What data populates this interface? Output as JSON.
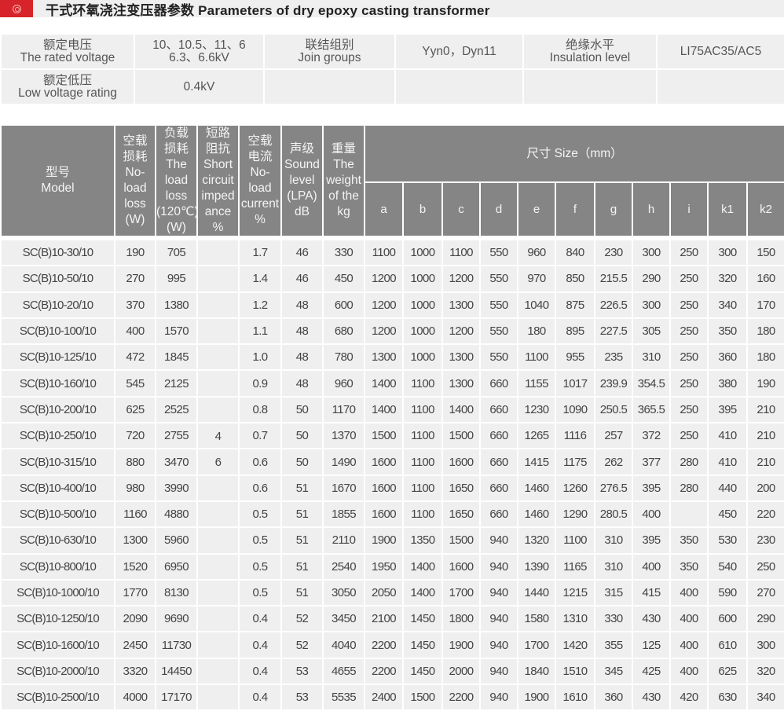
{
  "title": {
    "icon": "circle-emblem-icon",
    "text": "干式环氧浇注变压器参数 Parameters of dry epoxy casting transformer",
    "accent_color": "#d7242a"
  },
  "info": {
    "rated_voltage_label_cn": "额定电压",
    "rated_voltage_label_en": "The rated voltage",
    "rated_voltage_value_1": "10、10.5、11、6",
    "rated_voltage_value_2": "6.3、6.6kV",
    "join_groups_label_cn": "联结组别",
    "join_groups_label_en": "Join groups",
    "join_groups_value": "Yyn0，Dyn11",
    "insulation_label_cn": "绝缘水平",
    "insulation_label_en": "Insulation level",
    "insulation_value": "LI75AC35/AC5",
    "low_voltage_label_cn": "额定低压",
    "low_voltage_label_en": "Low voltage rating",
    "low_voltage_value": "0.4kV"
  },
  "table": {
    "headers": {
      "model": [
        "型号",
        "Model"
      ],
      "no_load_loss": [
        "空载",
        "损耗",
        "No-",
        "load",
        "loss",
        "(W)"
      ],
      "load_loss": [
        "负载",
        "损耗",
        "The",
        "load",
        "loss",
        "(120℃)",
        "(W)"
      ],
      "impedance": [
        "短路",
        "阻抗",
        "Short",
        "circuit",
        "imped",
        "ance",
        "%"
      ],
      "no_load_current": [
        "空载",
        "电流",
        "No-",
        "load",
        "current",
        "%"
      ],
      "sound": [
        "声级",
        "Sound",
        "level",
        "(LPA)",
        "dB"
      ],
      "weight": [
        "重量",
        "The",
        "weight",
        "of the",
        "kg"
      ],
      "size": "尺寸 Size（mm）",
      "dims": [
        "a",
        "b",
        "c",
        "d",
        "e",
        "f",
        "g",
        "h",
        "i",
        "k1",
        "k2"
      ]
    },
    "impedance_values": [
      "4",
      "6"
    ],
    "rows": [
      [
        "SC(B)10-30/10",
        "190",
        "705",
        "1.7",
        "46",
        "330",
        "1100",
        "1000",
        "1100",
        "550",
        "960",
        "840",
        "230",
        "300",
        "250",
        "300",
        "150"
      ],
      [
        "SC(B)10-50/10",
        "270",
        "995",
        "1.4",
        "46",
        "450",
        "1200",
        "1000",
        "1200",
        "550",
        "970",
        "850",
        "215.5",
        "290",
        "250",
        "320",
        "160"
      ],
      [
        "SC(B)10-20/10",
        "370",
        "1380",
        "1.2",
        "48",
        "600",
        "1200",
        "1000",
        "1300",
        "550",
        "1040",
        "875",
        "226.5",
        "300",
        "250",
        "340",
        "170"
      ],
      [
        "SC(B)10-100/10",
        "400",
        "1570",
        "1.1",
        "48",
        "680",
        "1200",
        "1000",
        "1200",
        "550",
        "180",
        "895",
        "227.5",
        "305",
        "250",
        "350",
        "180"
      ],
      [
        "SC(B)10-125/10",
        "472",
        "1845",
        "1.0",
        "48",
        "780",
        "1300",
        "1000",
        "1300",
        "550",
        "1100",
        "955",
        "235",
        "310",
        "250",
        "360",
        "180"
      ],
      [
        "SC(B)10-160/10",
        "545",
        "2125",
        "0.9",
        "48",
        "960",
        "1400",
        "1100",
        "1300",
        "660",
        "1155",
        "1017",
        "239.9",
        "354.5",
        "250",
        "380",
        "190"
      ],
      [
        "SC(B)10-200/10",
        "625",
        "2525",
        "0.8",
        "50",
        "1170",
        "1400",
        "1100",
        "1400",
        "660",
        "1230",
        "1090",
        "250.5",
        "365.5",
        "250",
        "395",
        "210"
      ],
      [
        "SC(B)10-250/10",
        "720",
        "2755",
        "0.7",
        "50",
        "1370",
        "1500",
        "1100",
        "1500",
        "660",
        "1265",
        "1116",
        "257",
        "372",
        "250",
        "410",
        "210"
      ],
      [
        "SC(B)10-315/10",
        "880",
        "3470",
        "0.6",
        "50",
        "1490",
        "1600",
        "1100",
        "1600",
        "660",
        "1415",
        "1175",
        "262",
        "377",
        "280",
        "410",
        "210"
      ],
      [
        "SC(B)10-400/10",
        "980",
        "3990",
        "0.6",
        "51",
        "1670",
        "1600",
        "1100",
        "1650",
        "660",
        "1460",
        "1260",
        "276.5",
        "395",
        "280",
        "440",
        "200"
      ],
      [
        "SC(B)10-500/10",
        "1160",
        "4880",
        "0.5",
        "51",
        "1855",
        "1600",
        "1100",
        "1650",
        "660",
        "1460",
        "1290",
        "280.5",
        "400",
        "",
        "450",
        "220"
      ],
      [
        "SC(B)10-630/10",
        "1300",
        "5960",
        "0.5",
        "51",
        "2110",
        "1900",
        "1350",
        "1500",
        "940",
        "1320",
        "1100",
        "310",
        "395",
        "350",
        "530",
        "230"
      ],
      [
        "SC(B)10-800/10",
        "1520",
        "6950",
        "0.5",
        "51",
        "2540",
        "1950",
        "1400",
        "1600",
        "940",
        "1390",
        "1165",
        "310",
        "400",
        "350",
        "540",
        "250"
      ],
      [
        "SC(B)10-1000/10",
        "1770",
        "8130",
        "0.5",
        "51",
        "3050",
        "2050",
        "1400",
        "1700",
        "940",
        "1440",
        "1215",
        "315",
        "415",
        "400",
        "590",
        "270"
      ],
      [
        "SC(B)10-1250/10",
        "2090",
        "9690",
        "0.4",
        "52",
        "3450",
        "2100",
        "1450",
        "1800",
        "940",
        "1580",
        "1310",
        "330",
        "430",
        "400",
        "600",
        "290"
      ],
      [
        "SC(B)10-1600/10",
        "2450",
        "11730",
        "0.4",
        "52",
        "4040",
        "2200",
        "1450",
        "1900",
        "940",
        "1700",
        "1420",
        "355",
        "125",
        "400",
        "610",
        "300"
      ],
      [
        "SC(B)10-2000/10",
        "3320",
        "14450",
        "0.4",
        "53",
        "4655",
        "2200",
        "1450",
        "2000",
        "940",
        "1840",
        "1510",
        "345",
        "425",
        "400",
        "625",
        "320"
      ],
      [
        "SC(B)10-2500/10",
        "4000",
        "17170",
        "0.4",
        "53",
        "5535",
        "2400",
        "1500",
        "2200",
        "940",
        "1900",
        "1610",
        "360",
        "430",
        "420",
        "630",
        "340"
      ]
    ]
  }
}
